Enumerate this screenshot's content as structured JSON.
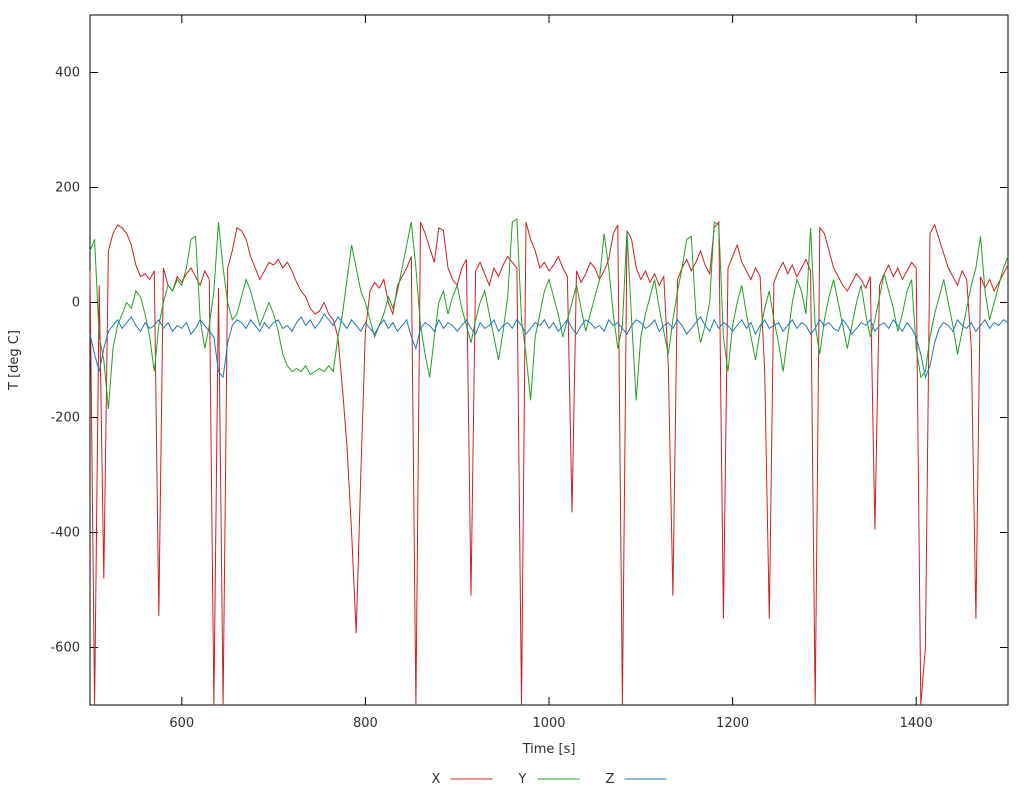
{
  "figure": {
    "background": "#ffffff",
    "border_color": "#000000",
    "text_color": "#2f2f2f"
  },
  "chart_data": {
    "type": "line",
    "title": "",
    "xlabel": "Time [s]",
    "ylabel": "T [deg C]",
    "xlim": [
      500,
      1500
    ],
    "ylim": [
      -700,
      500
    ],
    "xticks": [
      600,
      800,
      1000,
      1200,
      1400
    ],
    "yticks": [
      -600,
      -400,
      -200,
      0,
      200,
      400
    ],
    "grid": false,
    "legend_position": "bottom-center",
    "x": [
      500,
      505,
      510,
      515,
      520,
      525,
      530,
      535,
      540,
      545,
      550,
      555,
      560,
      565,
      570,
      575,
      580,
      585,
      590,
      595,
      600,
      605,
      610,
      615,
      620,
      625,
      630,
      635,
      640,
      645,
      650,
      655,
      660,
      665,
      670,
      675,
      680,
      685,
      690,
      695,
      700,
      705,
      710,
      715,
      720,
      725,
      730,
      735,
      740,
      745,
      750,
      755,
      760,
      765,
      770,
      775,
      780,
      785,
      790,
      795,
      800,
      805,
      810,
      815,
      820,
      825,
      830,
      835,
      840,
      845,
      850,
      855,
      860,
      865,
      870,
      875,
      880,
      885,
      890,
      895,
      900,
      905,
      910,
      915,
      920,
      925,
      930,
      935,
      940,
      945,
      950,
      955,
      960,
      965,
      970,
      975,
      980,
      985,
      990,
      995,
      1000,
      1005,
      1010,
      1015,
      1020,
      1025,
      1030,
      1035,
      1040,
      1045,
      1050,
      1055,
      1060,
      1065,
      1070,
      1075,
      1080,
      1085,
      1090,
      1095,
      1100,
      1105,
      1110,
      1115,
      1120,
      1125,
      1130,
      1135,
      1140,
      1145,
      1150,
      1155,
      1160,
      1165,
      1170,
      1175,
      1180,
      1185,
      1190,
      1195,
      1200,
      1205,
      1210,
      1215,
      1220,
      1225,
      1230,
      1235,
      1240,
      1245,
      1250,
      1255,
      1260,
      1265,
      1270,
      1275,
      1280,
      1285,
      1290,
      1295,
      1300,
      1305,
      1310,
      1315,
      1320,
      1325,
      1330,
      1335,
      1340,
      1345,
      1350,
      1355,
      1360,
      1365,
      1370,
      1375,
      1380,
      1385,
      1390,
      1395,
      1400,
      1405,
      1410,
      1415,
      1420,
      1425,
      1430,
      1435,
      1440,
      1445,
      1450,
      1455,
      1460,
      1465,
      1470,
      1475,
      1480,
      1485,
      1490,
      1495,
      1500
    ],
    "series": [
      {
        "name": "X",
        "color": "#cc2020",
        "values": [
          55,
          -700,
          30,
          -480,
          90,
          120,
          135,
          130,
          120,
          100,
          65,
          45,
          50,
          40,
          55,
          -545,
          60,
          30,
          20,
          45,
          35,
          50,
          60,
          45,
          30,
          55,
          40,
          -700,
          25,
          -700,
          60,
          90,
          130,
          125,
          110,
          80,
          60,
          40,
          55,
          70,
          65,
          75,
          60,
          70,
          55,
          35,
          20,
          10,
          -10,
          -20,
          -15,
          0,
          -20,
          -30,
          -60,
          -150,
          -250,
          -400,
          -575,
          -300,
          -50,
          20,
          35,
          25,
          40,
          0,
          -20,
          30,
          45,
          60,
          80,
          -700,
          140,
          120,
          95,
          70,
          130,
          125,
          60,
          40,
          30,
          60,
          75,
          -510,
          55,
          70,
          50,
          30,
          60,
          45,
          65,
          80,
          70,
          60,
          -700,
          140,
          110,
          90,
          60,
          70,
          55,
          65,
          80,
          60,
          45,
          -365,
          55,
          35,
          50,
          70,
          60,
          40,
          55,
          75,
          120,
          135,
          -700,
          125,
          110,
          60,
          40,
          55,
          35,
          50,
          30,
          45,
          -110,
          -510,
          40,
          60,
          75,
          55,
          70,
          90,
          65,
          50,
          130,
          140,
          -550,
          60,
          80,
          100,
          70,
          55,
          40,
          60,
          45,
          -120,
          -550,
          35,
          55,
          70,
          50,
          65,
          45,
          60,
          75,
          55,
          -700,
          130,
          120,
          90,
          60,
          45,
          30,
          20,
          35,
          50,
          40,
          25,
          45,
          -395,
          30,
          50,
          65,
          45,
          60,
          40,
          55,
          70,
          60,
          -700,
          -600,
          120,
          135,
          110,
          85,
          60,
          45,
          30,
          55,
          40,
          -80,
          -550,
          45,
          25,
          40,
          20,
          35,
          50,
          65
        ]
      },
      {
        "name": "Y",
        "color": "#22a022",
        "values": [
          90,
          110,
          -60,
          -100,
          -185,
          -80,
          -40,
          -20,
          0,
          -10,
          20,
          10,
          -20,
          -60,
          -120,
          -40,
          0,
          30,
          20,
          40,
          30,
          60,
          110,
          115,
          -30,
          -80,
          -40,
          20,
          140,
          60,
          0,
          -30,
          -20,
          10,
          40,
          20,
          -10,
          -40,
          -20,
          0,
          -20,
          -50,
          -90,
          -110,
          -120,
          -115,
          -120,
          -110,
          -125,
          -120,
          -115,
          -120,
          -110,
          -120,
          -60,
          -20,
          40,
          100,
          60,
          20,
          0,
          -30,
          -60,
          -40,
          -20,
          10,
          -10,
          20,
          60,
          100,
          140,
          60,
          -40,
          -90,
          -130,
          -60,
          0,
          20,
          -20,
          10,
          30,
          -10,
          -40,
          -70,
          -30,
          0,
          20,
          -20,
          -60,
          -100,
          -50,
          10,
          140,
          145,
          -30,
          -90,
          -170,
          -60,
          -20,
          20,
          40,
          10,
          -20,
          -60,
          -30,
          0,
          30,
          -10,
          -50,
          -20,
          10,
          40,
          120,
          60,
          -20,
          -80,
          -40,
          125,
          -30,
          -170,
          -60,
          -20,
          10,
          40,
          -10,
          -50,
          -90,
          -30,
          20,
          60,
          110,
          115,
          -20,
          -70,
          -40,
          0,
          140,
          135,
          -60,
          -120,
          -40,
          0,
          30,
          -20,
          -60,
          -100,
          -50,
          -10,
          20,
          -30,
          -70,
          -120,
          -60,
          0,
          40,
          20,
          -20,
          130,
          -40,
          -90,
          -30,
          10,
          40,
          0,
          -40,
          -80,
          -40,
          0,
          30,
          -20,
          -60,
          -30,
          10,
          50,
          20,
          -10,
          -50,
          -20,
          20,
          40,
          -80,
          -130,
          -120,
          -60,
          -20,
          10,
          40,
          0,
          -40,
          -90,
          -50,
          -10,
          30,
          60,
          115,
          20,
          -30,
          0,
          30,
          60,
          80
        ]
      },
      {
        "name": "Z",
        "color": "#1f77b4",
        "values": [
          -55,
          -90,
          -120,
          -80,
          -50,
          -40,
          -30,
          -45,
          -35,
          -25,
          -40,
          -50,
          -35,
          -45,
          -40,
          -30,
          -45,
          -35,
          -50,
          -40,
          -45,
          -35,
          -55,
          -45,
          -30,
          -40,
          -50,
          -60,
          -120,
          -130,
          -70,
          -40,
          -30,
          -35,
          -45,
          -30,
          -40,
          -50,
          -35,
          -45,
          -35,
          -30,
          -45,
          -40,
          -50,
          -35,
          -25,
          -40,
          -30,
          -45,
          -35,
          -20,
          -30,
          -40,
          -25,
          -35,
          -45,
          -30,
          -40,
          -50,
          -35,
          -45,
          -55,
          -40,
          -30,
          -45,
          -35,
          -50,
          -40,
          -30,
          -60,
          -80,
          -45,
          -35,
          -40,
          -50,
          -30,
          -45,
          -35,
          -40,
          -50,
          -40,
          -30,
          -45,
          -55,
          -35,
          -45,
          -40,
          -30,
          -50,
          -40,
          -35,
          -45,
          -30,
          -40,
          -55,
          -45,
          -35,
          -40,
          -30,
          -45,
          -35,
          -50,
          -40,
          -30,
          -45,
          -55,
          -40,
          -30,
          -35,
          -45,
          -40,
          -50,
          -30,
          -40,
          -35,
          -45,
          -55,
          -40,
          -30,
          -35,
          -45,
          -40,
          -30,
          -50,
          -40,
          -35,
          -45,
          -30,
          -40,
          -55,
          -45,
          -35,
          -25,
          -40,
          -50,
          -30,
          -45,
          -35,
          -40,
          -50,
          -40,
          -30,
          -45,
          -35,
          -55,
          -40,
          -30,
          -45,
          -40,
          -35,
          -50,
          -40,
          -30,
          -45,
          -35,
          -40,
          -55,
          -45,
          -30,
          -40,
          -35,
          -45,
          -50,
          -30,
          -40,
          -55,
          -45,
          -35,
          -40,
          -30,
          -50,
          -40,
          -35,
          -45,
          -30,
          -40,
          -50,
          -35,
          -45,
          -60,
          -90,
          -130,
          -110,
          -70,
          -45,
          -35,
          -40,
          -50,
          -30,
          -40,
          -45,
          -35,
          -50,
          -40,
          -30,
          -45,
          -35,
          -40,
          -30,
          -35
        ]
      }
    ]
  }
}
